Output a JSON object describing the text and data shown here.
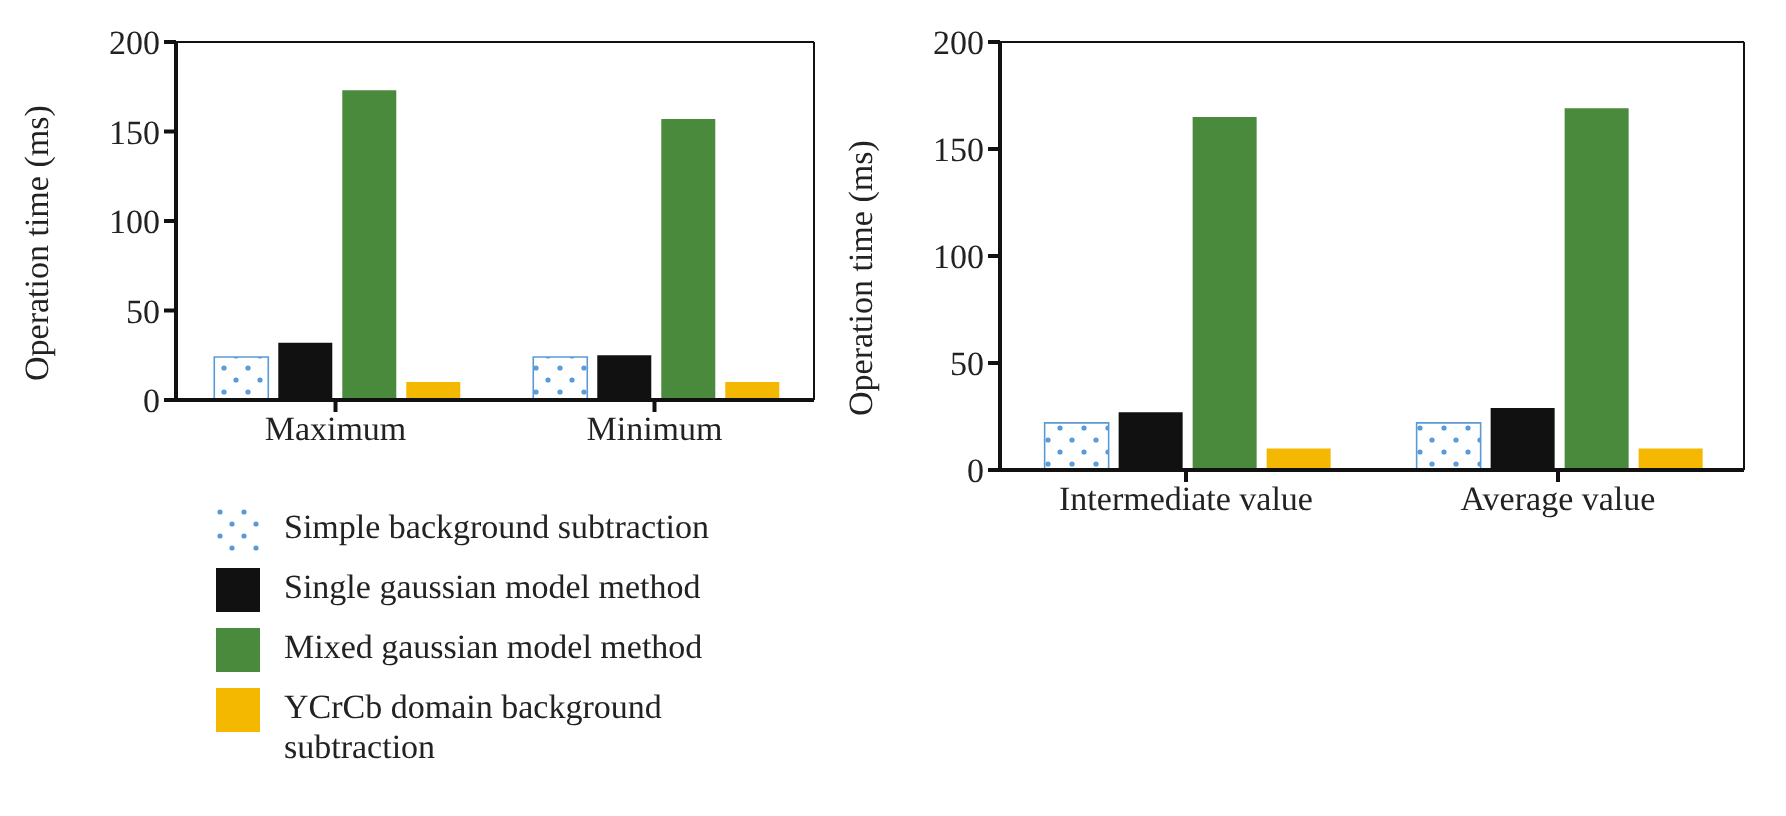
{
  "chart_data": [
    {
      "type": "bar",
      "ylabel": "Operation time (ms)",
      "categories": [
        "Maximum",
        "Minimum"
      ],
      "ylim": [
        0,
        200
      ],
      "yticks": [
        0,
        50,
        100,
        150,
        200
      ],
      "grid": false,
      "legend": "bottom",
      "series": [
        {
          "name": "Simple background subtraction",
          "color": "#5b9bd5",
          "values": [
            24,
            24
          ]
        },
        {
          "name": "Single gaussian model method",
          "color": "#111111",
          "values": [
            32,
            25
          ]
        },
        {
          "name": "Mixed gaussian model method",
          "color": "#4a8a3c",
          "values": [
            173,
            157
          ]
        },
        {
          "name": "YCrCb domain background subtraction",
          "color": "#f5b800",
          "values": [
            10,
            10
          ]
        }
      ]
    },
    {
      "type": "bar",
      "ylabel": "Operation time (ms)",
      "categories": [
        "Intermediate value",
        "Average value"
      ],
      "ylim": [
        0,
        200
      ],
      "yticks": [
        0,
        50,
        100,
        150,
        200
      ],
      "grid": false,
      "legend": false,
      "series": [
        {
          "color": "#5b9bd5",
          "values": [
            22,
            22
          ]
        },
        {
          "color": "#111111",
          "values": [
            27,
            29
          ]
        },
        {
          "color": "#4a8a3c",
          "values": [
            165,
            169
          ]
        },
        {
          "color": "#f5b800",
          "values": [
            10,
            10
          ]
        }
      ]
    }
  ]
}
